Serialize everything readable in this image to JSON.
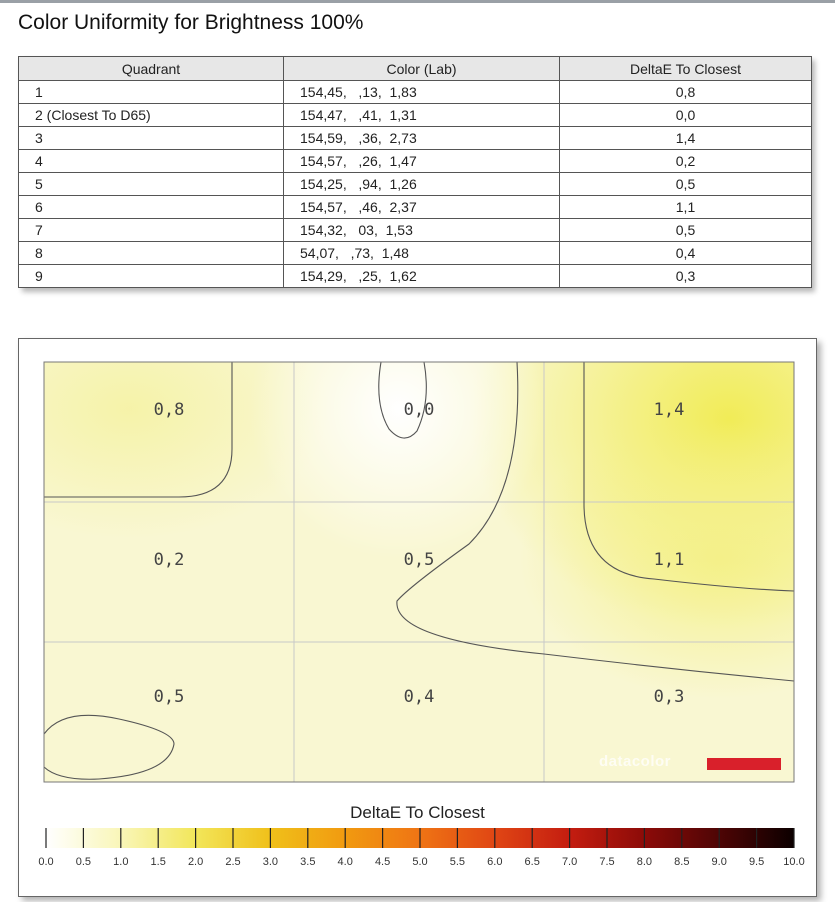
{
  "page": {
    "title": "Color Uniformity for Brightness 100%"
  },
  "table": {
    "headers": [
      "Quadrant",
      "Color (Lab)",
      "DeltaE To Closest"
    ],
    "rows": [
      {
        "quadrant": "1",
        "lab": "154,45,   ,13,  1,83",
        "deltae": "0,8"
      },
      {
        "quadrant": "2 (Closest To D65)",
        "lab": "154,47,   ,41,  1,31",
        "deltae": "0,0"
      },
      {
        "quadrant": "3",
        "lab": "154,59,   ,36,  2,73",
        "deltae": "1,4"
      },
      {
        "quadrant": "4",
        "lab": "154,57,   ,26,  1,47",
        "deltae": "0,2"
      },
      {
        "quadrant": "5",
        "lab": "154,25,   ,94,  1,26",
        "deltae": "0,5"
      },
      {
        "quadrant": "6",
        "lab": "154,57,   ,46,  2,37",
        "deltae": "1,1"
      },
      {
        "quadrant": "7",
        "lab": "154,32,   03,  1,53",
        "deltae": "0,5"
      },
      {
        "quadrant": "8",
        "lab": "54,07,   ,73,  1,48",
        "deltae": "0,4"
      },
      {
        "quadrant": "9",
        "lab": "154,29,   ,25,  1,62",
        "deltae": "0,3"
      }
    ]
  },
  "chart_data": {
    "type": "heatmap",
    "rows": 3,
    "cols": 3,
    "cells": [
      {
        "row": 0,
        "col": 0,
        "value": 0.8,
        "label": "0,8"
      },
      {
        "row": 0,
        "col": 1,
        "value": 0.0,
        "label": "0,0"
      },
      {
        "row": 0,
        "col": 2,
        "value": 1.4,
        "label": "1,4"
      },
      {
        "row": 1,
        "col": 0,
        "value": 0.2,
        "label": "0,2"
      },
      {
        "row": 1,
        "col": 1,
        "value": 0.5,
        "label": "0,5"
      },
      {
        "row": 1,
        "col": 2,
        "value": 1.1,
        "label": "1,1"
      },
      {
        "row": 2,
        "col": 0,
        "value": 0.5,
        "label": "0,5"
      },
      {
        "row": 2,
        "col": 1,
        "value": 0.4,
        "label": "0,4"
      },
      {
        "row": 2,
        "col": 2,
        "value": 0.3,
        "label": "0,3"
      }
    ],
    "colorbar": {
      "title": "DeltaE To Closest",
      "range": [
        0,
        10
      ],
      "ticks": [
        "0.0",
        "0.5",
        "1.0",
        "1.5",
        "2.0",
        "2.5",
        "3.0",
        "3.5",
        "4.0",
        "4.5",
        "5.0",
        "5.5",
        "6.0",
        "6.5",
        "7.0",
        "7.5",
        "8.0",
        "8.5",
        "9.0",
        "9.5",
        "10.0"
      ]
    },
    "watermark": "datacolor",
    "colors": {
      "brand_bar": "#d9202b",
      "contour": "#555555",
      "grid": "#c8c8c8"
    }
  }
}
